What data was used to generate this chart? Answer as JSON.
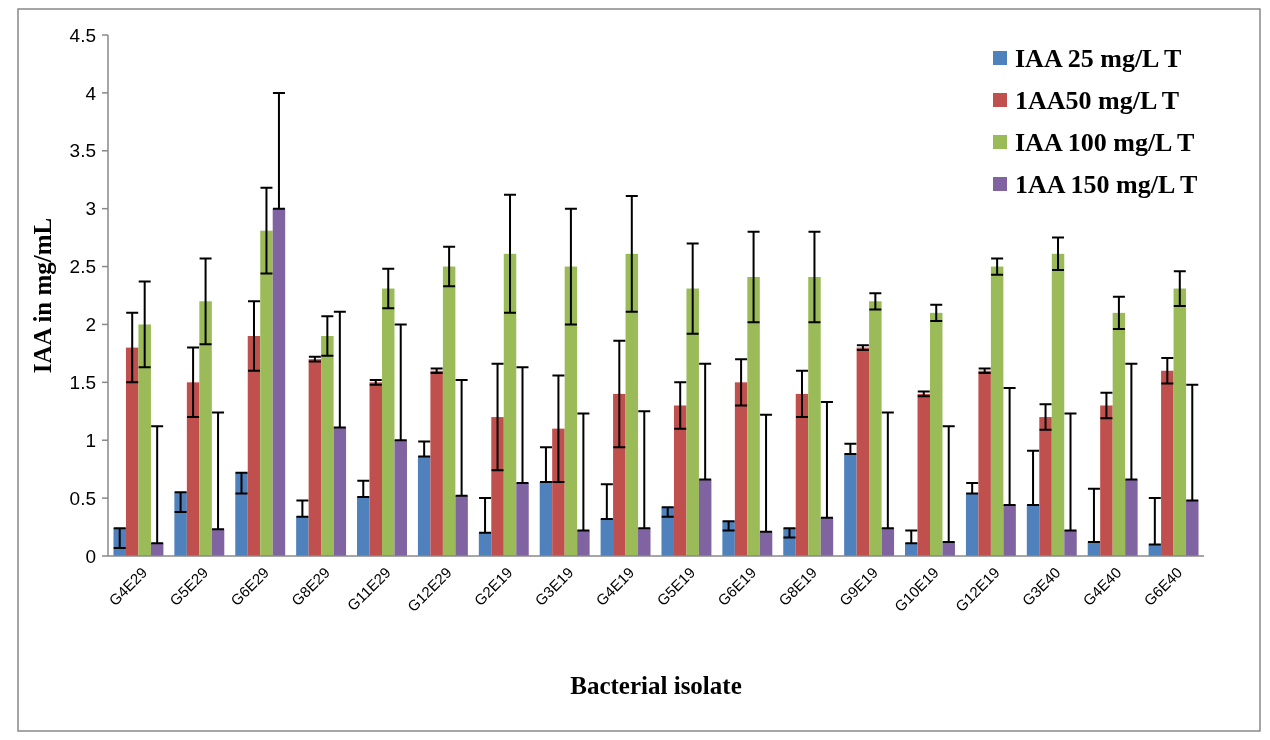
{
  "chart_data": {
    "type": "bar",
    "xlabel": "Bacterial isolate",
    "ylabel": "IAA in mg/mL",
    "categories": [
      "G4E29",
      "G5E29",
      "G6E29",
      "G8E29",
      "G11E29",
      "G12E29",
      "G2E19",
      "G3E19",
      "G4E19",
      "G5E19",
      "G6E19",
      "G8E19",
      "G9E19",
      "G10E19",
      "G12E19",
      "G3E40",
      "G4E40",
      "G6E40"
    ],
    "ylim": [
      0,
      4.5
    ],
    "yticks": [
      0,
      0.5,
      1,
      1.5,
      2,
      2.5,
      3,
      3.5,
      4,
      4.5
    ],
    "grid": false,
    "legend": "top right",
    "series": [
      {
        "name": "IAA 25 mg/L T",
        "color": "#4f81bd",
        "values": [
          0.24,
          0.55,
          0.72,
          0.34,
          0.51,
          0.86,
          0.2,
          0.64,
          0.32,
          0.42,
          0.3,
          0.24,
          0.88,
          0.11,
          0.54,
          0.44,
          0.12,
          0.1
        ],
        "errors": [
          [
            0.07,
            0.24
          ],
          [
            0.38,
            0.55
          ],
          [
            0.54,
            0.72
          ],
          [
            0.34,
            0.48
          ],
          [
            0.51,
            0.65
          ],
          [
            0.86,
            0.99
          ],
          [
            0.2,
            0.5
          ],
          [
            0.64,
            0.94
          ],
          [
            0.32,
            0.62
          ],
          [
            0.34,
            0.42
          ],
          [
            0.22,
            0.3
          ],
          [
            0.16,
            0.24
          ],
          [
            0.88,
            0.97
          ],
          [
            0.11,
            0.22
          ],
          [
            0.54,
            0.63
          ],
          [
            0.44,
            0.91
          ],
          [
            0.12,
            0.58
          ],
          [
            0.1,
            0.5
          ]
        ]
      },
      {
        "name": "1AA50 mg/L T",
        "color": "#c0504d",
        "values": [
          1.8,
          1.5,
          1.9,
          1.7,
          1.5,
          1.6,
          1.2,
          1.1,
          1.4,
          1.3,
          1.5,
          1.4,
          1.8,
          1.4,
          1.6,
          1.2,
          1.3,
          1.6
        ],
        "errors": [
          0.3,
          0.3,
          0.3,
          0.02,
          0.02,
          0.02,
          0.46,
          0.46,
          0.46,
          0.2,
          0.2,
          0.2,
          0.02,
          0.02,
          0.02,
          0.11,
          0.11,
          0.11
        ]
      },
      {
        "name": "IAA 100 mg/L T",
        "color": "#9bbb59",
        "values": [
          2.0,
          2.2,
          2.81,
          1.9,
          2.31,
          2.5,
          2.61,
          2.5,
          2.61,
          2.31,
          2.41,
          2.41,
          2.2,
          2.1,
          2.5,
          2.61,
          2.1,
          2.31
        ],
        "errors": [
          0.37,
          0.37,
          0.37,
          0.17,
          0.17,
          0.17,
          0.51,
          0.5,
          0.5,
          0.39,
          0.39,
          0.39,
          0.07,
          0.07,
          0.07,
          0.14,
          0.14,
          0.15
        ]
      },
      {
        "name": "1AA 150 mg/L T",
        "color": "#8064a2",
        "values": [
          0.11,
          0.23,
          3.0,
          1.11,
          1.0,
          0.52,
          0.63,
          0.22,
          0.24,
          0.66,
          0.21,
          0.33,
          0.24,
          0.12,
          0.44,
          0.22,
          0.66,
          0.48
        ],
        "errors": [
          [
            0.11,
            1.12
          ],
          [
            0.23,
            1.24
          ],
          [
            3.0,
            4.0
          ],
          [
            1.11,
            2.11
          ],
          [
            1.0,
            2.0
          ],
          [
            0.52,
            1.52
          ],
          [
            0.63,
            1.63
          ],
          [
            0.22,
            1.23
          ],
          [
            0.24,
            1.25
          ],
          [
            0.66,
            1.66
          ],
          [
            0.21,
            1.22
          ],
          [
            0.33,
            1.33
          ],
          [
            0.24,
            1.24
          ],
          [
            0.12,
            1.12
          ],
          [
            0.44,
            1.45
          ],
          [
            0.22,
            1.23
          ],
          [
            0.66,
            1.66
          ],
          [
            0.48,
            1.48
          ]
        ]
      }
    ]
  }
}
